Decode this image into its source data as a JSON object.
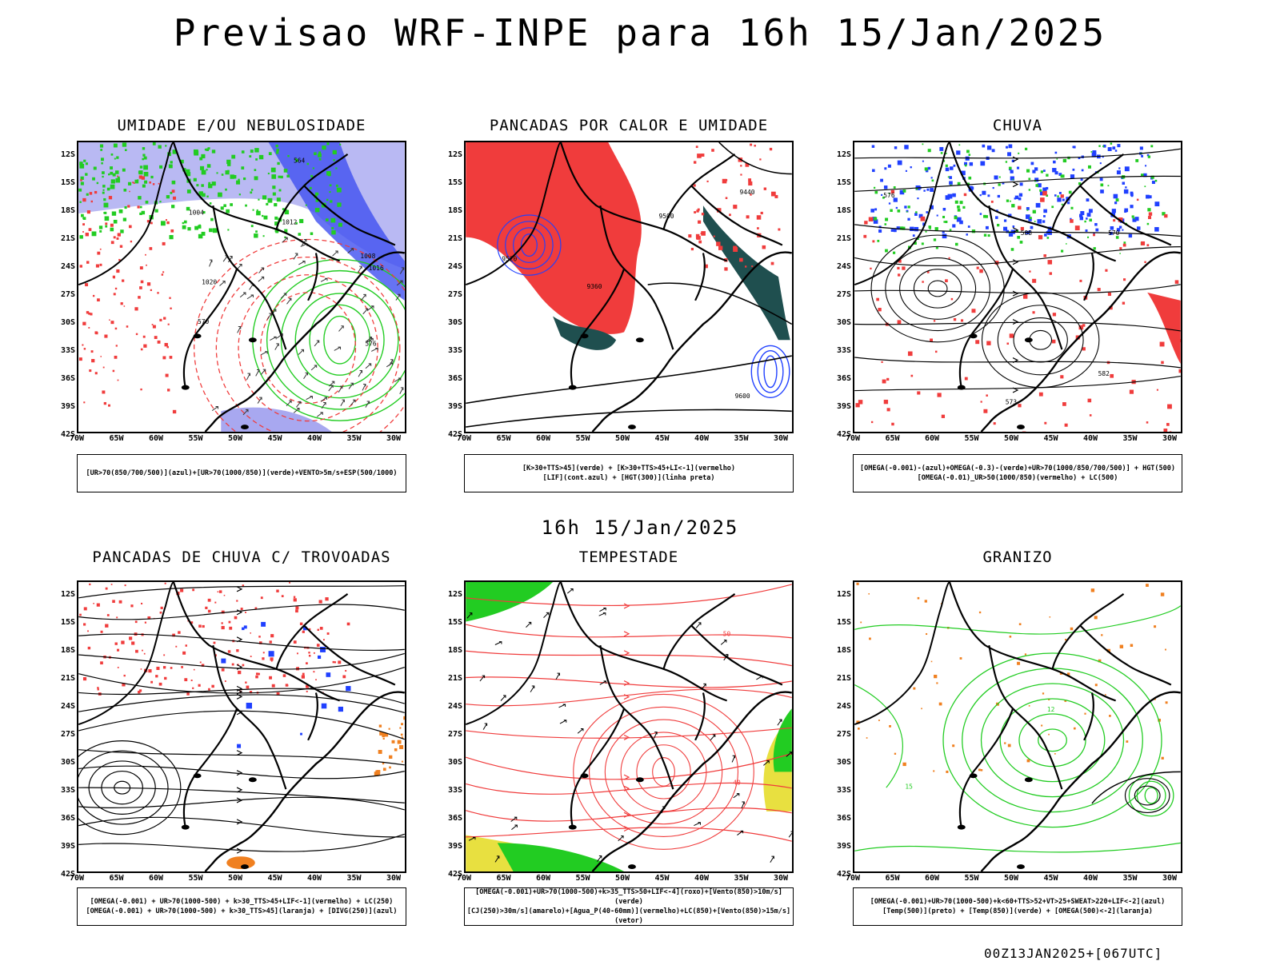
{
  "title": "Previsao WRF-INPE  para 16h 15/Jan/2025",
  "mid_title": "16h 15/Jan/2025",
  "footer": "00Z13JAN2025+[067UTC]",
  "lat_labels": [
    "12S",
    "15S",
    "18S",
    "21S",
    "24S",
    "27S",
    "30S",
    "33S",
    "36S",
    "39S",
    "42S"
  ],
  "lon_labels": [
    "70W",
    "65W",
    "60W",
    "55W",
    "50W",
    "45W",
    "40W",
    "35W",
    "30W"
  ],
  "panels": [
    {
      "title": "UMIDADE E/OU NEBULOSIDADE",
      "legend_lines": [
        "[UR>70(850/700/500)](azul)+[UR>70(1000/850)](verde)+VENTO>5m/s+ESP(500/1000)"
      ],
      "contour_labels": [
        "1004",
        "1008",
        "1012",
        "1016",
        "1020",
        "576",
        "570",
        "564"
      ]
    },
    {
      "title": "PANCADAS POR CALOR E UMIDADE",
      "legend_lines": [
        "[K>30+TTS>45](verde) + [K>30+TTS>45+LI<-1](vermelho)",
        "[LIF](cont.azul) + [HGT(300)](linha preta)"
      ],
      "contour_labels": [
        "9600",
        "9520",
        "9440",
        "9360",
        "9500"
      ]
    },
    {
      "title": "CHUVA",
      "legend_lines": [
        "[OMEGA(-0.001)-(azul)+OMEGA(-0.3)-(verde)+UR>70(1000/850/700/500)] + HGT(500)",
        "[OMEGA(-0.01)_UR>50(1000/850)(vermelho) + LC(500)"
      ],
      "contour_labels": [
        "588",
        "582",
        "576",
        "570",
        "573"
      ]
    },
    {
      "title": "PANCADAS DE CHUVA C/ TROVOADAS",
      "legend_lines": [
        "[OMEGA(-0.001) + UR>70(1000-500) + k>30_TTS>45+LIF<-1](vermelho) + LC(250)",
        "[OMEGA(-0.001) + UR>70(1000-500) + k>30_TTS>45](laranja) + [DIVG(250)](azul)"
      ],
      "contour_labels": []
    },
    {
      "title": "TEMPESTADE",
      "legend_lines": [
        "[OMEGA(-0.001)+UR>70(1000-500)+k>35_TTS>50+LIF<-4](roxo)+[Vento(850)>10m/s](verde)",
        "[CJ(250)>30m/s](amarelo)+[Agua_P(40-60mm)](vermelho)+LC(850)+[Vento(850)>15m/s](vetor)"
      ],
      "contour_labels": [
        "40",
        "50"
      ]
    },
    {
      "title": "GRANIZO",
      "legend_lines": [
        "[OMEGA(-0.001)+UR>70(1000-500)+k<60+TTS>52+VT>25+SWEAT>220+LIF<-2](azul)",
        "[Temp(500)](preto) + [Temp(850)](verde) + [OMEGA(500)<-2](laranja)"
      ],
      "contour_labels": [
        "15",
        "12"
      ]
    }
  ],
  "colors": {
    "red": "#f03c3c",
    "green": "#22cc22",
    "blue": "#2040ff",
    "lightblue": "#a8a8f0",
    "teal": "#1f4f4f",
    "yellow": "#e8e040",
    "orange": "#f08020"
  }
}
